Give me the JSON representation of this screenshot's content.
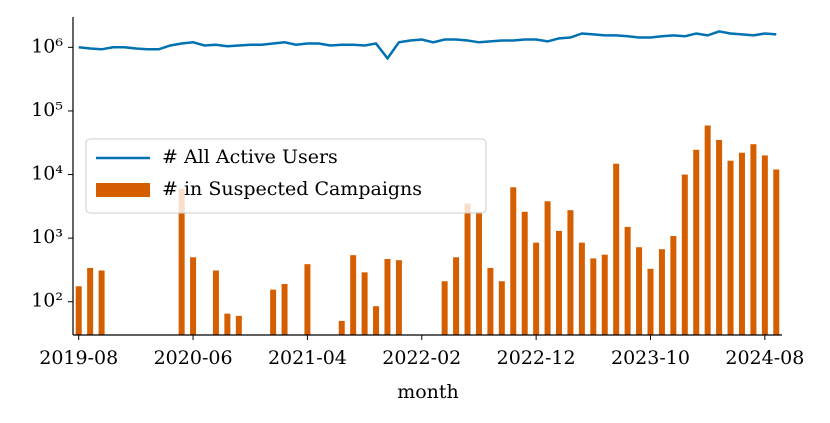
{
  "chart_data": {
    "type": "bar-line",
    "x_label": "month",
    "categories": [
      "2019-08",
      null,
      null,
      null,
      null,
      null,
      null,
      null,
      null,
      null,
      "2020-06",
      null,
      null,
      null,
      null,
      null,
      null,
      null,
      null,
      null,
      "2021-04",
      null,
      null,
      null,
      null,
      null,
      null,
      null,
      null,
      null,
      "2022-02",
      null,
      null,
      null,
      null,
      null,
      null,
      null,
      null,
      null,
      "2022-12",
      null,
      null,
      null,
      null,
      null,
      null,
      null,
      null,
      null,
      "2023-10",
      null,
      null,
      null,
      null,
      null,
      null,
      null,
      null,
      null,
      "2024-08",
      null
    ],
    "series": [
      {
        "name": "# All Active Users",
        "type": "line",
        "color": "#0072b2",
        "values": [
          1000000,
          960000,
          930000,
          1000000,
          1000000,
          960000,
          930000,
          930000,
          1070000,
          1150000,
          1200000,
          1070000,
          1100000,
          1040000,
          1070000,
          1100000,
          1100000,
          1150000,
          1200000,
          1100000,
          1150000,
          1150000,
          1070000,
          1100000,
          1100000,
          1070000,
          1150000,
          670000,
          1200000,
          1280000,
          1330000,
          1200000,
          1330000,
          1330000,
          1280000,
          1200000,
          1240000,
          1280000,
          1280000,
          1330000,
          1330000,
          1240000,
          1380000,
          1430000,
          1650000,
          1600000,
          1540000,
          1540000,
          1490000,
          1430000,
          1430000,
          1490000,
          1540000,
          1490000,
          1650000,
          1540000,
          1780000,
          1650000,
          1600000,
          1540000,
          1650000,
          1600000
        ]
      },
      {
        "name": "# in Suspected Campaigns",
        "type": "bar",
        "color": "#d55e00",
        "values": [
          175,
          340,
          310,
          null,
          null,
          null,
          null,
          null,
          null,
          6000,
          500,
          null,
          310,
          65,
          60,
          null,
          null,
          155,
          190,
          null,
          390,
          null,
          null,
          50,
          540,
          290,
          85,
          470,
          450,
          null,
          null,
          null,
          210,
          500,
          3500,
          2600,
          340,
          210,
          6300,
          2600,
          850,
          3800,
          1300,
          2750,
          850,
          480,
          550,
          14800,
          1500,
          720,
          330,
          670,
          1080,
          10000,
          24500,
          59000,
          35000,
          16500,
          22000,
          30000,
          20000,
          12000
        ]
      }
    ],
    "log_y": true,
    "ylim": [
      30,
      3000000
    ],
    "yticks": [
      {
        "value": 100,
        "label": "10²"
      },
      {
        "value": 1000,
        "label": "10³"
      },
      {
        "value": 10000,
        "label": "10⁴"
      },
      {
        "value": 100000,
        "label": "10⁵"
      },
      {
        "value": 1000000,
        "label": "10⁶"
      }
    ],
    "legend": "center left"
  }
}
